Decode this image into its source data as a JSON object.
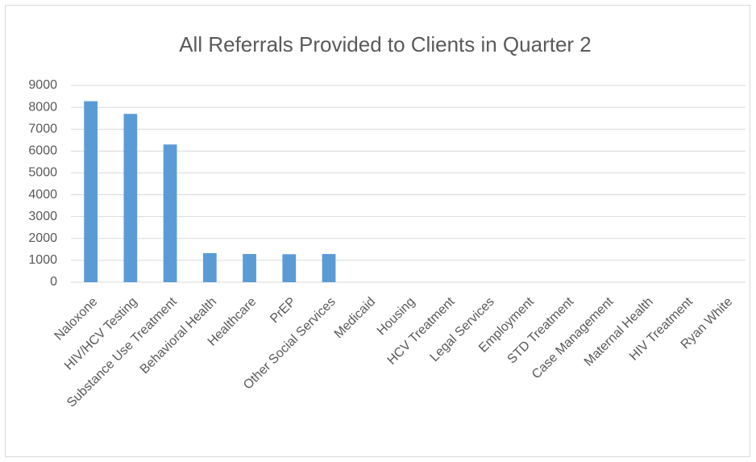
{
  "chart_data": {
    "type": "bar",
    "title": "All Referrals Provided to Clients in Quarter 2",
    "categories": [
      "Naloxone",
      "HIV/HCV Testing",
      "Substance Use Treatment",
      "Behavioral Health",
      "Healthcare",
      "PrEP",
      "Other Social Services",
      "Medicaid",
      "Housing",
      "HCV Treatment",
      "Legal Services",
      "Employment",
      "STD Treatment",
      "Case Management",
      "Maternal Health",
      "HIV Treatment",
      "Ryan White"
    ],
    "values": [
      8280,
      7700,
      6300,
      1330,
      1290,
      1280,
      1290,
      0,
      0,
      0,
      0,
      0,
      0,
      0,
      0,
      0,
      0
    ],
    "color": "#5b9bd5",
    "ylim": [
      0,
      9000
    ],
    "yticks": [
      0,
      1000,
      2000,
      3000,
      4000,
      5000,
      6000,
      7000,
      8000,
      9000
    ],
    "grid": true
  }
}
